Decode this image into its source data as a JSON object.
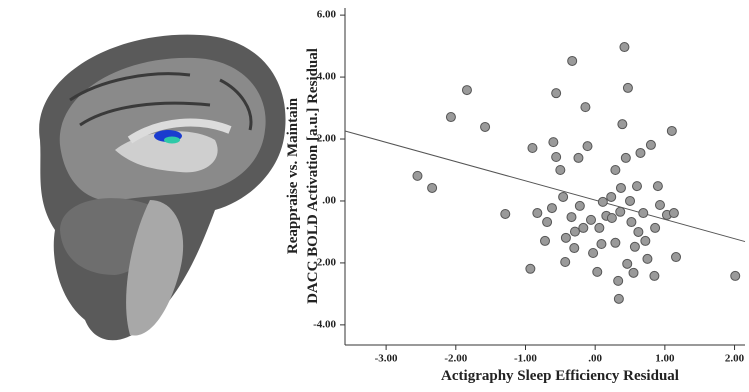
{
  "chart_data": {
    "type": "scatter",
    "xlabel": "Actigraphy Sleep Efficiency Residual",
    "ylabel": [
      "Reappraise vs. Maintain",
      "DACC BOLD Activation [a.u.] Residual"
    ],
    "xlim": [
      -3.59,
      2.15
    ],
    "ylim": [
      -4.65,
      6.23
    ],
    "xticks": [
      {
        "value": -3,
        "label": "-3.00"
      },
      {
        "value": -2,
        "label": "-2.00"
      },
      {
        "value": -1,
        "label": "-1.00"
      },
      {
        "value": 0,
        "label": ".00"
      },
      {
        "value": 1,
        "label": "1.00"
      },
      {
        "value": 2,
        "label": "2.00"
      }
    ],
    "yticks": [
      {
        "value": -4,
        "label": "-4.00"
      },
      {
        "value": -2,
        "label": "-2.00"
      },
      {
        "value": 0,
        "label": ".00"
      },
      {
        "value": 2,
        "label": "2.00"
      },
      {
        "value": 4,
        "label": "4.00"
      },
      {
        "value": 6,
        "label": "6.00"
      }
    ],
    "color": "#9a9a9a",
    "x": [
      -2.55,
      -2.34,
      -2.07,
      -1.84,
      -1.58,
      -1.29,
      -0.93,
      -0.9,
      -0.83,
      -0.72,
      -0.69,
      -0.62,
      -0.6,
      -0.56,
      -0.56,
      -0.5,
      -0.46,
      -0.43,
      -0.42,
      -0.34,
      -0.33,
      -0.29,
      -0.24,
      -0.3,
      -0.22,
      -0.17,
      -0.14,
      -0.11,
      -0.06,
      -0.03,
      0.03,
      0.06,
      0.09,
      0.11,
      0.16,
      0.23,
      0.24,
      0.29,
      0.29,
      0.33,
      0.34,
      0.36,
      0.37,
      0.39,
      0.42,
      0.44,
      0.46,
      0.47,
      0.5,
      0.52,
      0.55,
      0.57,
      0.6,
      0.62,
      0.65,
      0.69,
      0.72,
      0.75,
      0.8,
      0.85,
      0.86,
      0.9,
      0.93,
      1.03,
      1.1,
      1.13,
      1.16,
      2.01
    ],
    "values": [
      0.81,
      0.42,
      2.71,
      3.58,
      2.39,
      -0.42,
      -2.19,
      1.71,
      -0.39,
      -1.29,
      -0.68,
      -0.23,
      1.9,
      3.48,
      1.42,
      1.0,
      0.13,
      -1.97,
      -1.19,
      -0.52,
      4.52,
      -0.99,
      1.39,
      -1.52,
      -0.16,
      -0.87,
      3.03,
      1.77,
      -0.61,
      -1.68,
      -2.29,
      -0.87,
      -1.39,
      -0.03,
      -0.48,
      0.13,
      -0.55,
      1.0,
      -1.35,
      -2.58,
      -3.16,
      -0.35,
      0.42,
      2.48,
      4.97,
      1.39,
      -2.03,
      3.65,
      0.0,
      -0.68,
      -2.32,
      -1.48,
      0.48,
      -1.0,
      1.55,
      -0.39,
      -1.29,
      -1.87,
      1.81,
      -2.42,
      -0.87,
      0.48,
      -0.13,
      -0.45,
      2.26,
      -0.39,
      -1.81,
      -2.42
    ],
    "fit_line": {
      "x": [
        -3.59,
        2.15
      ],
      "y": [
        2.26,
        -1.31
      ],
      "color": "#555555"
    }
  }
}
